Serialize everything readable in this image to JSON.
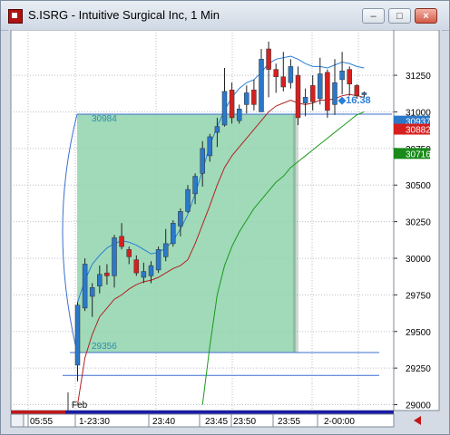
{
  "window": {
    "title": "S.ISRG - Intuitive Surgical Inc, 1 Min",
    "minimize_label": "–",
    "maximize_label": "□",
    "close_label": "×"
  },
  "colors": {
    "up_candle": "#2b78c9",
    "down_candle": "#d62020",
    "box_fill": "#8fd3ad",
    "green_ma": "#1a9a1a",
    "red_ma": "#b22222",
    "blue_band": "#2a7fd6",
    "hline": "#3b6fd1"
  },
  "chart": {
    "annotations": {
      "box_top": "30984",
      "box_bottom": "29356",
      "cursor_value": "16.38",
      "date_marker": "Feb"
    },
    "price_tags": [
      {
        "label": "30937",
        "color": "#2b78c9"
      },
      {
        "label": "30882",
        "color": "#d62020"
      },
      {
        "label": "30716",
        "color": "#1a8a1a"
      }
    ],
    "y_ticks": [
      "31250",
      "31000",
      "30750",
      "30500",
      "30250",
      "30000",
      "29750",
      "29500",
      "29250",
      "29000"
    ],
    "x_ticks": [
      "05:55",
      "1-23:30",
      "23:40",
      "23:45",
      "23:50",
      "23:55",
      "2-00:00"
    ]
  },
  "chart_data": {
    "type": "candlestick",
    "title": "S.ISRG - Intuitive Surgical Inc, 1 Min",
    "ylim": [
      28960,
      31560
    ],
    "y_ticks": [
      31250,
      31000,
      30750,
      30500,
      30250,
      30000,
      29750,
      29500,
      29250,
      29000
    ],
    "x_tick_labels": [
      "05:55",
      "1-23:30",
      "23:40",
      "23:45",
      "23:50",
      "23:55",
      "2-00:00"
    ],
    "candles": [
      {
        "o": 29270,
        "h": 29700,
        "l": 29160,
        "c": 29680
      },
      {
        "o": 29660,
        "h": 30000,
        "l": 29640,
        "c": 29960
      },
      {
        "o": 29740,
        "h": 29830,
        "l": 29600,
        "c": 29800
      },
      {
        "o": 29810,
        "h": 29950,
        "l": 29760,
        "c": 29890
      },
      {
        "o": 29900,
        "h": 29960,
        "l": 29820,
        "c": 29880
      },
      {
        "o": 29880,
        "h": 30160,
        "l": 29800,
        "c": 30140
      },
      {
        "o": 30150,
        "h": 30240,
        "l": 30060,
        "c": 30080
      },
      {
        "o": 30060,
        "h": 30080,
        "l": 29960,
        "c": 30010
      },
      {
        "o": 29990,
        "h": 30020,
        "l": 29880,
        "c": 29900
      },
      {
        "o": 29870,
        "h": 29970,
        "l": 29830,
        "c": 29910
      },
      {
        "o": 29880,
        "h": 29980,
        "l": 29830,
        "c": 29950
      },
      {
        "o": 29920,
        "h": 30080,
        "l": 29900,
        "c": 30060
      },
      {
        "o": 30010,
        "h": 30200,
        "l": 29980,
        "c": 30100
      },
      {
        "o": 30100,
        "h": 30260,
        "l": 30080,
        "c": 30240
      },
      {
        "o": 30220,
        "h": 30340,
        "l": 30150,
        "c": 30320
      },
      {
        "o": 30320,
        "h": 30500,
        "l": 30310,
        "c": 30470
      },
      {
        "o": 30440,
        "h": 30580,
        "l": 30370,
        "c": 30560
      },
      {
        "o": 30580,
        "h": 30800,
        "l": 30490,
        "c": 30750
      },
      {
        "o": 30700,
        "h": 30850,
        "l": 30660,
        "c": 30830
      },
      {
        "o": 30860,
        "h": 30960,
        "l": 30760,
        "c": 30900
      },
      {
        "o": 30910,
        "h": 31300,
        "l": 30900,
        "c": 31140
      },
      {
        "o": 31150,
        "h": 31200,
        "l": 30920,
        "c": 30960
      },
      {
        "o": 30940,
        "h": 31050,
        "l": 30920,
        "c": 31020
      },
      {
        "o": 31050,
        "h": 31180,
        "l": 30990,
        "c": 31130
      },
      {
        "o": 31150,
        "h": 31220,
        "l": 31010,
        "c": 31050
      },
      {
        "o": 31000,
        "h": 31430,
        "l": 31000,
        "c": 31360
      },
      {
        "o": 31430,
        "h": 31480,
        "l": 31100,
        "c": 31290
      },
      {
        "o": 31290,
        "h": 31330,
        "l": 31130,
        "c": 31240
      },
      {
        "o": 31240,
        "h": 31410,
        "l": 31140,
        "c": 31170
      },
      {
        "o": 31200,
        "h": 31360,
        "l": 31160,
        "c": 31310
      },
      {
        "o": 31250,
        "h": 31310,
        "l": 30910,
        "c": 30960
      },
      {
        "o": 31060,
        "h": 31160,
        "l": 30970,
        "c": 31100
      },
      {
        "o": 31180,
        "h": 31250,
        "l": 31010,
        "c": 31070
      },
      {
        "o": 31090,
        "h": 31370,
        "l": 31050,
        "c": 31260
      },
      {
        "o": 31270,
        "h": 31290,
        "l": 30960,
        "c": 31010
      },
      {
        "o": 31050,
        "h": 31360,
        "l": 30980,
        "c": 31200
      },
      {
        "o": 31220,
        "h": 31410,
        "l": 31120,
        "c": 31280
      },
      {
        "o": 31290,
        "h": 31310,
        "l": 31110,
        "c": 31190
      },
      {
        "o": 31180,
        "h": 31190,
        "l": 31090,
        "c": 31110
      },
      {
        "o": 31120,
        "h": 31140,
        "l": 31100,
        "c": 31130
      }
    ],
    "indicators": {
      "red_ma": [
        29000,
        29320,
        29480,
        29600,
        29660,
        29720,
        29750,
        29790,
        29820,
        29840,
        29850,
        29870,
        29900,
        29930,
        29950,
        29990,
        30100,
        30230,
        30360,
        30500,
        30620,
        30700,
        30760,
        30820,
        30880,
        30940,
        31000,
        31040,
        31060,
        31080,
        31060,
        31050,
        31060,
        31080,
        31080,
        31090,
        31110,
        31120,
        31110,
        31100
      ],
      "green_ma": [
        null,
        null,
        null,
        null,
        null,
        null,
        null,
        null,
        null,
        null,
        null,
        null,
        null,
        null,
        null,
        null,
        null,
        29000,
        29400,
        29750,
        29950,
        30080,
        30180,
        30260,
        30340,
        30400,
        30460,
        30520,
        30560,
        30620,
        30660,
        30700,
        30740,
        30780,
        30820,
        30860,
        30900,
        30940,
        30980,
        31000
      ],
      "blue_band": [
        29700,
        29850,
        29960,
        30020,
        30070,
        30100,
        30120,
        30110,
        30090,
        30060,
        30030,
        30040,
        30070,
        30120,
        30200,
        30300,
        30440,
        30600,
        30770,
        30900,
        31010,
        31100,
        31160,
        31200,
        31220,
        31270,
        31330,
        31360,
        31370,
        31380,
        31360,
        31330,
        31310,
        31310,
        31300,
        31320,
        31340,
        31330,
        31310,
        31300
      ]
    },
    "box": {
      "top": 30984,
      "bottom": 29356,
      "start_index": 0,
      "end_index": 29
    },
    "hlines": [
      29356,
      29200
    ],
    "price_tags": [
      30937,
      30882,
      30716
    ]
  }
}
